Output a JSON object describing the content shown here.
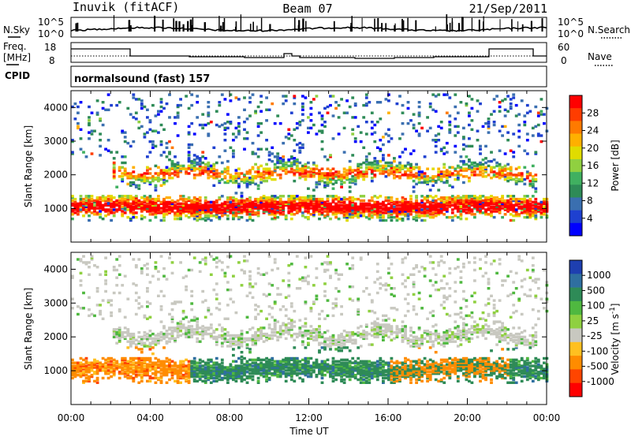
{
  "header": {
    "station": "Inuvik (fitACF)",
    "beam": "Beam 07",
    "date": "21/Sep/2011"
  },
  "top_panel": {
    "left_label": "N.Sky",
    "right_label": "N.Search",
    "left_ticks": [
      "10^5",
      "10^0"
    ],
    "right_ticks": [
      "10^5",
      "10^0"
    ]
  },
  "freq_panel": {
    "left_label": "Freq.",
    "left_unit": "[MHz]",
    "right_label": "Nave",
    "left_ticks": [
      "18",
      "8"
    ],
    "right_ticks": [
      "60",
      "0"
    ]
  },
  "cpid_panel": {
    "label": "CPID",
    "text": "normalsound (fast) 157"
  },
  "chart_data": [
    {
      "type": "heatmap",
      "title": "",
      "xlabel": "",
      "ylabel": "Slant Range [km]",
      "x_ticks": [
        "00:00",
        "04:00",
        "08:00",
        "12:00",
        "16:00",
        "20:00",
        "00:00"
      ],
      "y_ticks": [
        "1000",
        "2000",
        "3000",
        "4000"
      ],
      "ylim": [
        0,
        4500
      ],
      "colorbar": {
        "label": "Power [dB]",
        "ticks": [
          "28",
          "24",
          "20",
          "16",
          "12",
          "8",
          "4"
        ],
        "colors": [
          "#ff0000",
          "#ff3c00",
          "#ff7a00",
          "#ffb000",
          "#e0dc00",
          "#90d040",
          "#40b060",
          "#2e8b57",
          "#3a6fb0",
          "#1e40d0",
          "#0000ff"
        ]
      }
    },
    {
      "type": "heatmap",
      "title": "",
      "xlabel": "Time UT",
      "ylabel": "Slant Range [km]",
      "x_ticks": [
        "00:00",
        "04:00",
        "08:00",
        "12:00",
        "16:00",
        "20:00",
        "00:00"
      ],
      "y_ticks": [
        "1000",
        "2000",
        "3000",
        "4000"
      ],
      "ylim": [
        0,
        4500
      ],
      "colorbar": {
        "label": "Velocity  [m s",
        "label_sup": "-1",
        "label_end": "]",
        "ticks": [
          "1000",
          "500",
          "100",
          "25",
          "-25",
          "-100",
          "-500",
          "-1000"
        ],
        "colors": [
          "#1e3fb0",
          "#2f6fa0",
          "#2e8b57",
          "#4fb840",
          "#8fd040",
          "#c8c8c0",
          "#ffc020",
          "#ff8c00",
          "#ff4500",
          "#ff0000"
        ]
      }
    }
  ]
}
